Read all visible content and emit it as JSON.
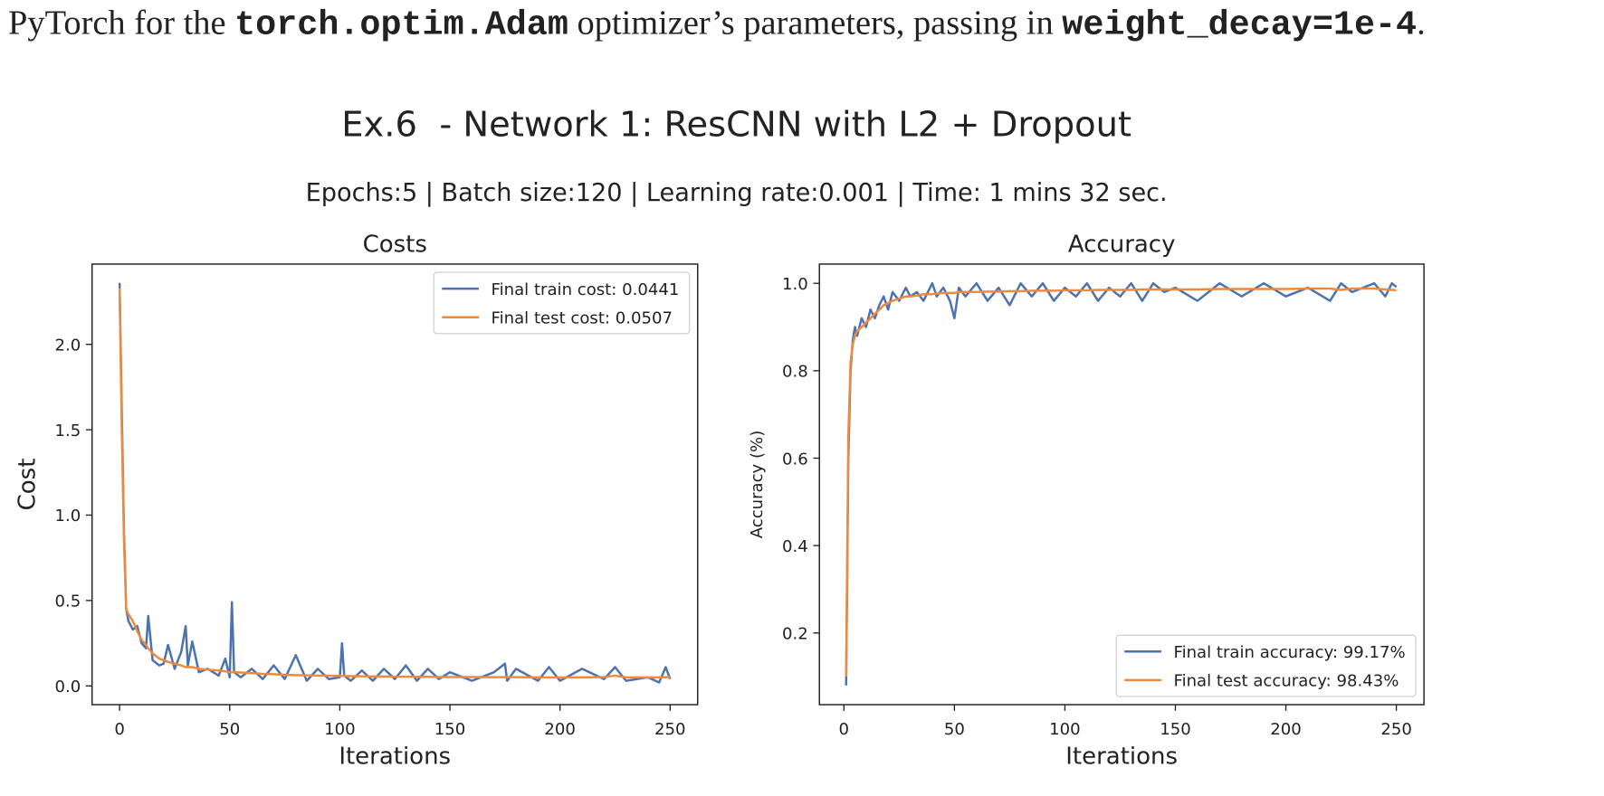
{
  "document": {
    "text": [
      "PyTorch for the ",
      "torch.optim.Adam",
      " optimizer’s parameters, passing in ",
      "weight_decay=1e-4",
      "."
    ]
  },
  "figure": {
    "title": "Ex.6  - Network 1: ResCNN with L2 + Dropout",
    "subtitle": "Epochs:5 | Batch size:120 | Learning rate:0.001 | Time: 1 mins 32 sec."
  },
  "chart_data": [
    {
      "type": "line",
      "title": "Costs",
      "x_label": "Iterations",
      "y_label": "Cost",
      "legend": "upper right",
      "x": [
        0,
        1,
        2,
        3,
        4,
        6,
        8,
        10,
        12,
        13,
        15,
        18,
        20,
        22,
        25,
        28,
        30,
        31,
        33,
        36,
        40,
        45,
        48,
        50,
        51,
        52,
        55,
        60,
        65,
        70,
        75,
        80,
        85,
        90,
        95,
        100,
        101,
        102,
        105,
        110,
        115,
        120,
        125,
        130,
        135,
        140,
        145,
        150,
        160,
        170,
        175,
        176,
        180,
        190,
        195,
        200,
        210,
        220,
        225,
        230,
        240,
        245,
        248,
        250
      ],
      "series": [
        {
          "name": "Final train cost: 0.0441",
          "color": "#4c72b0",
          "values": [
            2.36,
            1.6,
            0.9,
            0.45,
            0.38,
            0.33,
            0.35,
            0.25,
            0.22,
            0.41,
            0.15,
            0.12,
            0.13,
            0.24,
            0.1,
            0.2,
            0.35,
            0.12,
            0.26,
            0.08,
            0.1,
            0.06,
            0.16,
            0.05,
            0.49,
            0.08,
            0.05,
            0.1,
            0.04,
            0.12,
            0.04,
            0.18,
            0.03,
            0.1,
            0.04,
            0.05,
            0.25,
            0.06,
            0.03,
            0.09,
            0.03,
            0.1,
            0.04,
            0.12,
            0.03,
            0.1,
            0.04,
            0.08,
            0.03,
            0.08,
            0.13,
            0.03,
            0.1,
            0.03,
            0.11,
            0.03,
            0.1,
            0.04,
            0.11,
            0.03,
            0.05,
            0.02,
            0.11,
            0.04
          ]
        },
        {
          "name": "Final test cost: 0.0507",
          "color": "#ef8a3c",
          "values": [
            2.33,
            1.5,
            0.85,
            0.45,
            0.42,
            0.38,
            0.32,
            0.27,
            0.24,
            0.22,
            0.19,
            0.16,
            0.15,
            0.14,
            0.13,
            0.12,
            0.11,
            0.11,
            0.11,
            0.1,
            0.095,
            0.09,
            0.085,
            0.08,
            0.08,
            0.08,
            0.078,
            0.075,
            0.07,
            0.068,
            0.065,
            0.063,
            0.062,
            0.06,
            0.06,
            0.058,
            0.058,
            0.058,
            0.057,
            0.056,
            0.055,
            0.055,
            0.054,
            0.054,
            0.053,
            0.053,
            0.052,
            0.052,
            0.052,
            0.051,
            0.051,
            0.051,
            0.051,
            0.05,
            0.05,
            0.05,
            0.05,
            0.052,
            0.06,
            0.05,
            0.05,
            0.05,
            0.051,
            0.0507
          ]
        }
      ],
      "xlim": [
        -12.5,
        262.5
      ],
      "ylim": [
        -0.11,
        2.47
      ],
      "xticks": [
        0,
        50,
        100,
        150,
        200,
        250
      ],
      "yticks": [
        {
          "value": 0,
          "label": "0.0"
        },
        0.5,
        {
          "value": 1,
          "label": "1.0"
        },
        1.5,
        {
          "value": 2,
          "label": "2.0"
        }
      ]
    },
    {
      "type": "line",
      "title": "Accuracy",
      "x_label": "Iterations",
      "y_label": "Accuracy (%)",
      "legend": "lower right",
      "x": [
        1,
        2,
        3,
        4,
        5,
        6,
        8,
        10,
        12,
        14,
        16,
        18,
        20,
        22,
        25,
        28,
        30,
        33,
        36,
        40,
        42,
        45,
        48,
        50,
        52,
        55,
        60,
        65,
        70,
        75,
        80,
        85,
        90,
        95,
        100,
        105,
        110,
        115,
        120,
        125,
        130,
        135,
        140,
        145,
        150,
        160,
        170,
        180,
        190,
        200,
        210,
        220,
        225,
        230,
        240,
        245,
        248,
        250
      ],
      "series": [
        {
          "name": "Final train accuracy: 99.17%",
          "color": "#4c72b0",
          "values": [
            0.08,
            0.6,
            0.8,
            0.87,
            0.9,
            0.88,
            0.92,
            0.9,
            0.94,
            0.92,
            0.95,
            0.97,
            0.94,
            0.98,
            0.96,
            0.99,
            0.97,
            0.98,
            0.96,
            1.0,
            0.97,
            0.99,
            0.96,
            0.92,
            0.99,
            0.97,
            1.0,
            0.96,
            0.99,
            0.95,
            1.0,
            0.97,
            1.0,
            0.96,
            0.99,
            0.97,
            1.0,
            0.96,
            0.99,
            0.97,
            1.0,
            0.96,
            1.0,
            0.98,
            0.99,
            0.96,
            1.0,
            0.97,
            1.0,
            0.97,
            0.99,
            0.96,
            1.0,
            0.98,
            1.0,
            0.97,
            1.0,
            0.9917
          ]
        },
        {
          "name": "Final test accuracy: 98.43%",
          "color": "#ef8a3c",
          "values": [
            0.1,
            0.65,
            0.82,
            0.86,
            0.88,
            0.89,
            0.9,
            0.91,
            0.92,
            0.93,
            0.94,
            0.95,
            0.955,
            0.96,
            0.965,
            0.97,
            0.97,
            0.972,
            0.975,
            0.975,
            0.977,
            0.978,
            0.978,
            0.978,
            0.98,
            0.98,
            0.98,
            0.981,
            0.981,
            0.982,
            0.982,
            0.983,
            0.983,
            0.983,
            0.984,
            0.984,
            0.984,
            0.985,
            0.985,
            0.985,
            0.985,
            0.986,
            0.986,
            0.986,
            0.986,
            0.986,
            0.987,
            0.987,
            0.987,
            0.987,
            0.988,
            0.988,
            0.985,
            0.988,
            0.988,
            0.986,
            0.985,
            0.9843
          ]
        }
      ],
      "xlim": [
        -11.1,
        262.5
      ],
      "ylim": [
        0.036,
        1.044
      ],
      "xticks": [
        0,
        50,
        100,
        150,
        200,
        250
      ],
      "yticks": [
        0.2,
        0.4,
        0.6,
        0.8,
        {
          "value": 1,
          "label": "1.0"
        }
      ]
    }
  ]
}
